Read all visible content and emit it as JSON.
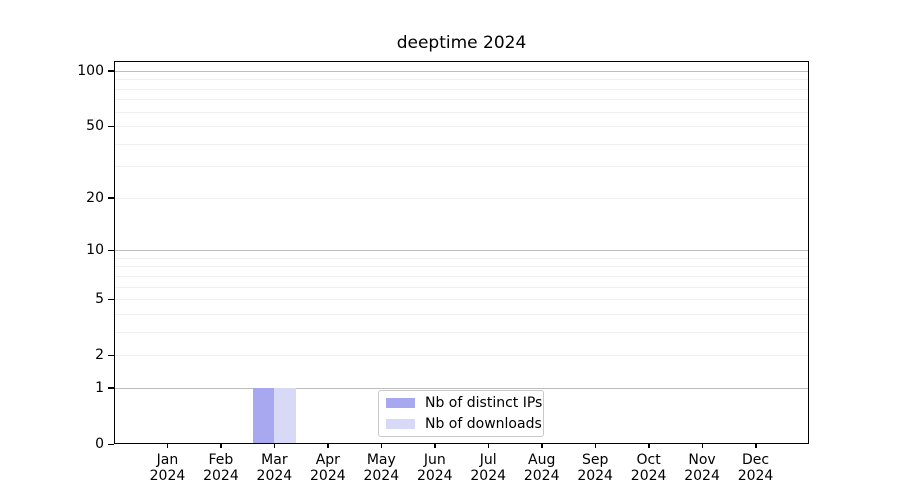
{
  "chart_data": {
    "type": "bar",
    "title": "deeptime 2024",
    "year": "2024",
    "categories": [
      "Jan",
      "Feb",
      "Mar",
      "Apr",
      "May",
      "Jun",
      "Jul",
      "Aug",
      "Sep",
      "Oct",
      "Nov",
      "Dec"
    ],
    "series": [
      {
        "name": "Nb of distinct IPs",
        "color": "#a8a8f0",
        "values": [
          0,
          0,
          1,
          0,
          0,
          0,
          0,
          0,
          0,
          0,
          0,
          0
        ]
      },
      {
        "name": "Nb of downloads",
        "color": "#d8d8f7",
        "values": [
          0,
          0,
          1,
          0,
          0,
          0,
          0,
          0,
          0,
          0,
          0,
          0
        ]
      }
    ],
    "xlabel": "",
    "ylabel": "",
    "y_scale": "log1p",
    "ylim": [
      0,
      113
    ],
    "y_ticks": [
      0,
      1,
      2,
      5,
      10,
      20,
      50,
      100
    ],
    "y_major_gridlines": [
      1,
      10,
      100
    ],
    "y_minor_gridlines": [
      2,
      3,
      4,
      5,
      6,
      7,
      8,
      9,
      20,
      30,
      40,
      50,
      60,
      70,
      80,
      90
    ],
    "grid": true,
    "legend_position": "lower center",
    "bar_width_fraction": 0.4,
    "colors": {
      "major_grid": "#bdbdbd",
      "minor_grid": "#efefef",
      "axis": "#000000",
      "text": "#000000",
      "background": "#ffffff"
    }
  },
  "legend": {
    "items": [
      {
        "label": "Nb of distinct IPs",
        "color": "#a8a8f0"
      },
      {
        "label": "Nb of downloads",
        "color": "#d8d8f7"
      }
    ]
  }
}
